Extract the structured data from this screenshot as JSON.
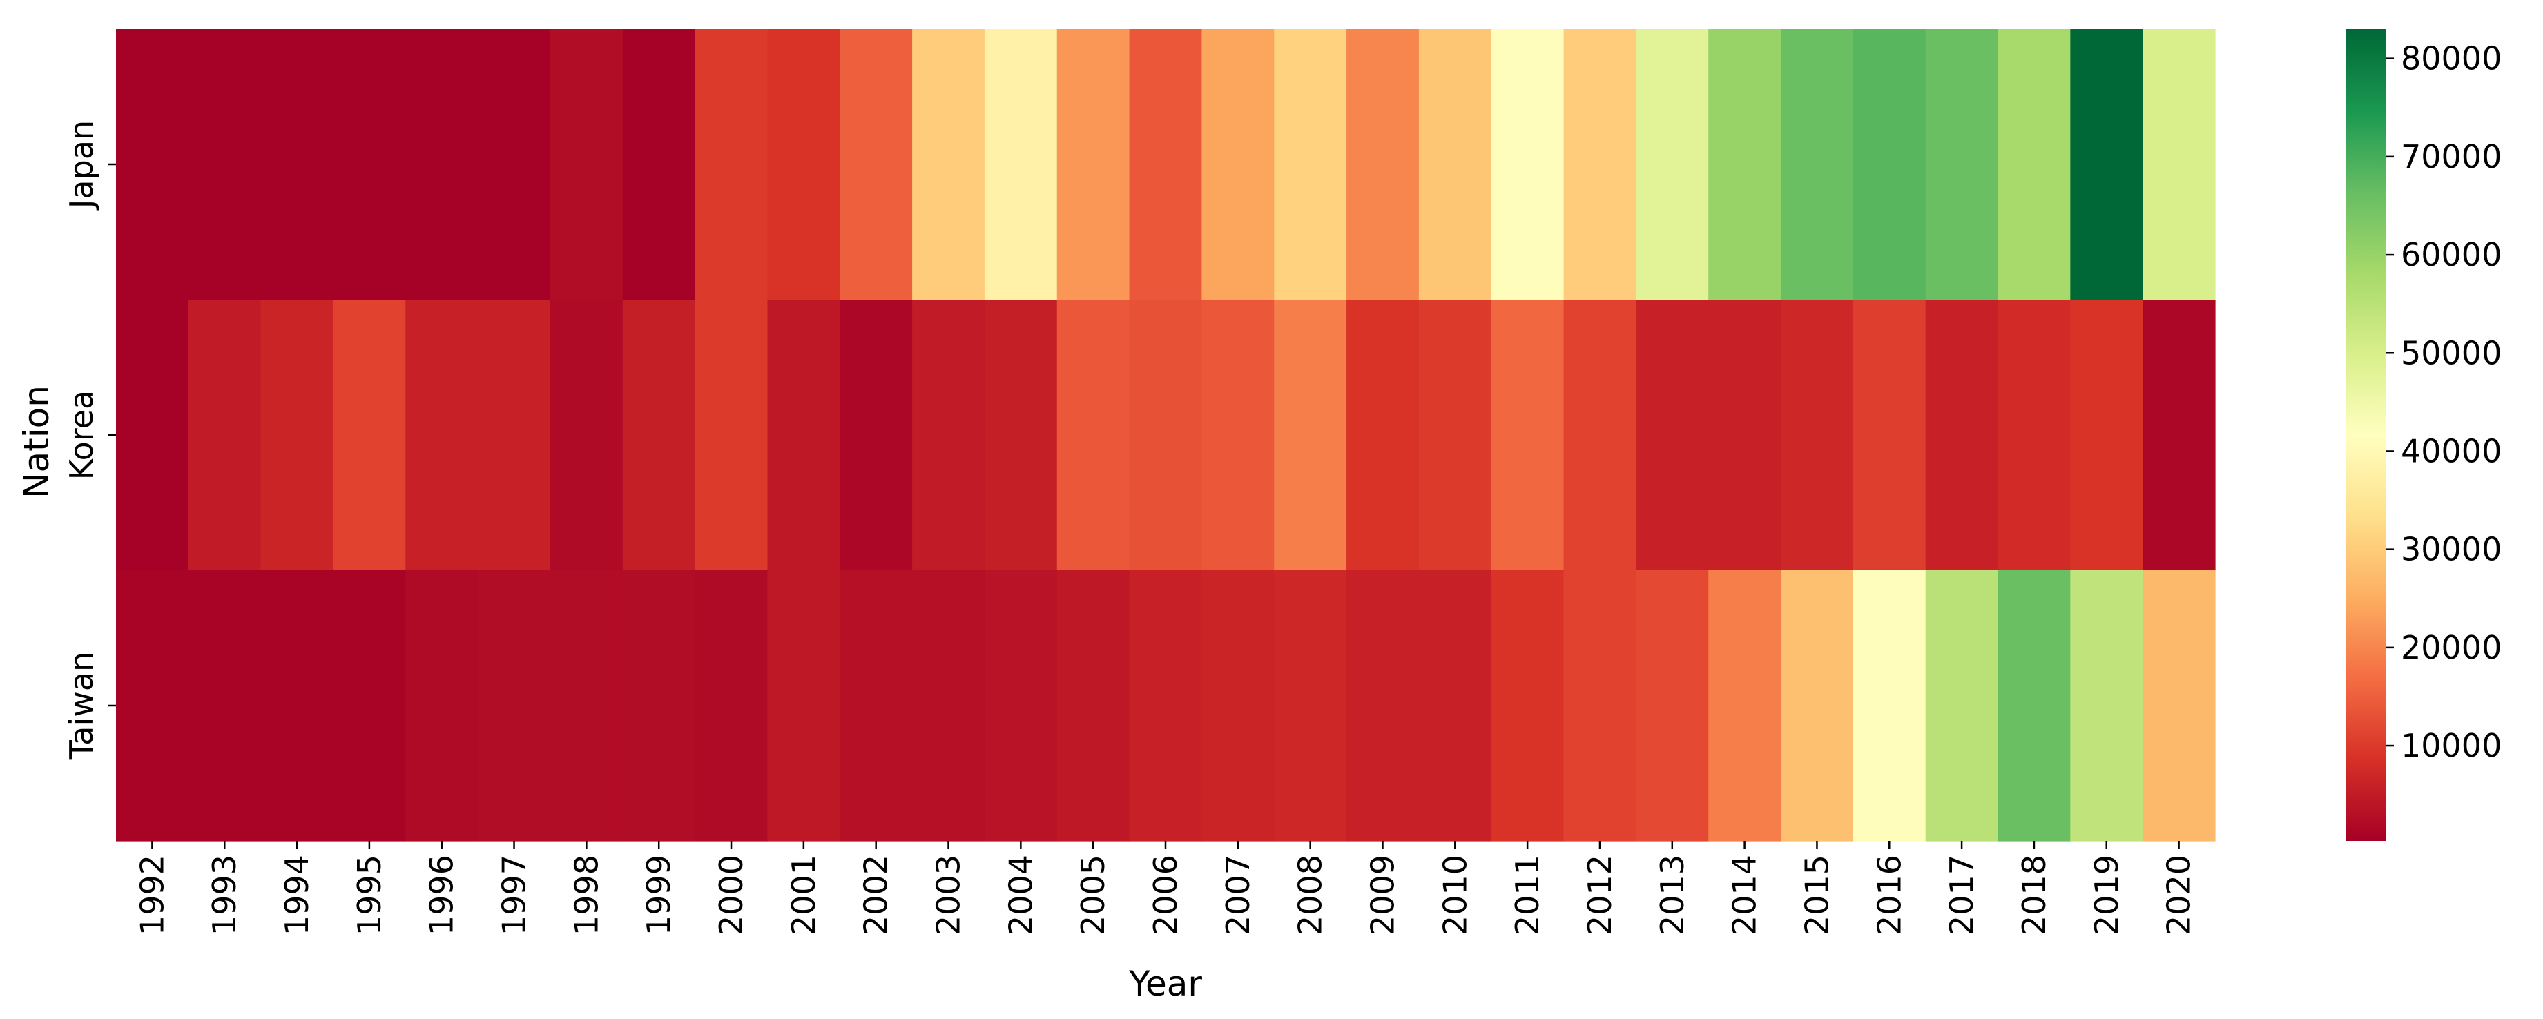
{
  "chart_data": {
    "type": "heatmap",
    "title": "",
    "xlabel": "Year",
    "ylabel": "Nation",
    "x": [
      "1992",
      "1993",
      "1994",
      "1995",
      "1996",
      "1997",
      "1998",
      "1999",
      "2000",
      "2001",
      "2002",
      "2003",
      "2004",
      "2005",
      "2006",
      "2007",
      "2008",
      "2009",
      "2010",
      "2011",
      "2012",
      "2013",
      "2014",
      "2015",
      "2016",
      "2017",
      "2018",
      "2019",
      "2020"
    ],
    "y": [
      "Japan",
      "Korea",
      "Taiwan"
    ],
    "values": [
      [
        500,
        500,
        500,
        500,
        500,
        500,
        2500,
        500,
        10000,
        9000,
        15000,
        30000,
        38000,
        22000,
        14000,
        24000,
        31000,
        20000,
        29000,
        41000,
        30000,
        48000,
        60000,
        66000,
        68000,
        66000,
        58000,
        83000,
        50000
      ],
      [
        500,
        5000,
        6500,
        11000,
        6000,
        6000,
        2000,
        5500,
        10000,
        4500,
        1500,
        5000,
        5500,
        14000,
        13000,
        14000,
        19000,
        9000,
        10000,
        16000,
        11000,
        6000,
        6000,
        7000,
        10500,
        6000,
        7500,
        9000,
        1500
      ],
      [
        1000,
        1000,
        1000,
        1000,
        2000,
        2500,
        2500,
        2500,
        2000,
        4500,
        3000,
        3000,
        3500,
        4500,
        6000,
        6500,
        7000,
        6000,
        6000,
        9000,
        11000,
        12000,
        19000,
        28000,
        41000,
        55000,
        66000,
        54000,
        27000
      ]
    ],
    "vmin": 300,
    "vmax": 83000,
    "colorbar_ticks": [
      10000,
      20000,
      30000,
      40000,
      50000,
      60000,
      70000,
      80000
    ],
    "colormap": "RdYlGn",
    "grid": false,
    "legend": "colorbar-right"
  }
}
